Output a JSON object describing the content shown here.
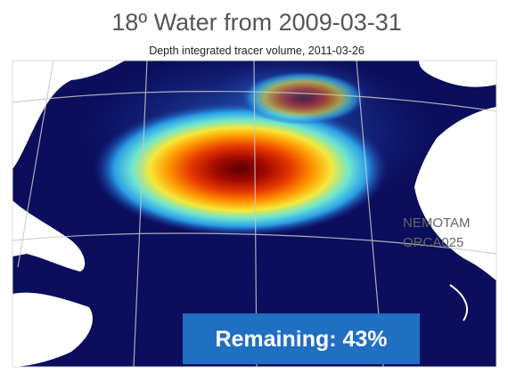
{
  "header": {
    "title": "18º Water from 2009-03-31",
    "subtitle": "Depth integrated tracer volume, 2011-03-26"
  },
  "map": {
    "labels": [
      "NEMOTAM",
      "ORCA025"
    ],
    "badge": "Remaining: 43%"
  }
}
